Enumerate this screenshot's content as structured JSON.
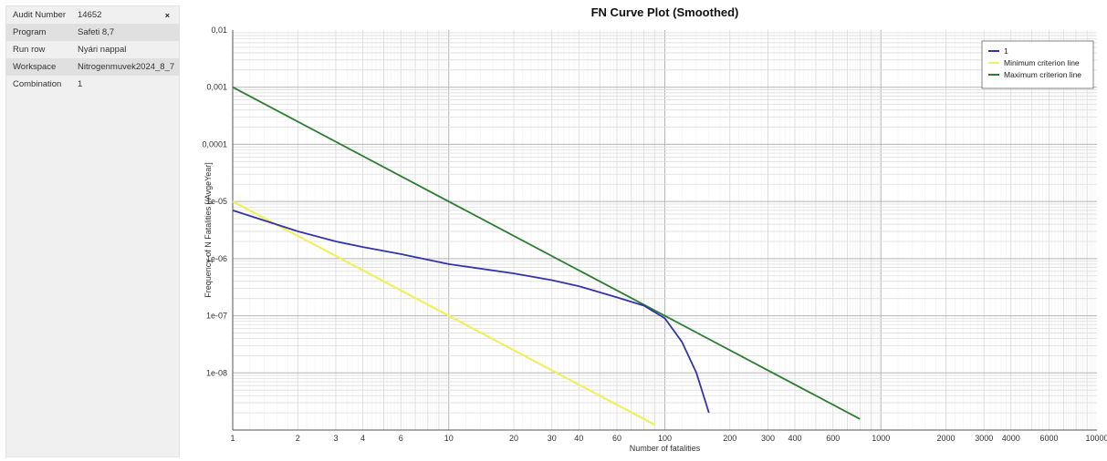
{
  "panel": {
    "close_label": "×",
    "rows": [
      {
        "label": "Audit Number",
        "value": "14652"
      },
      {
        "label": "Program",
        "value": "Safeti 8,7"
      },
      {
        "label": "Run row",
        "value": "Nyári nappal"
      },
      {
        "label": "Workspace",
        "value": "Nitrogenmuvek2024_8_7"
      },
      {
        "label": "Combination",
        "value": "1"
      }
    ]
  },
  "chart_data": {
    "type": "line",
    "title": "FN Curve Plot (Smoothed)",
    "xlabel": "Number of fatalities",
    "ylabel": "Frequency of N Fatalities [/AvgeYear]",
    "x_scale": "log",
    "y_scale": "log",
    "xlim": [
      1,
      10000
    ],
    "ylim": [
      1e-09,
      0.01
    ],
    "grid": true,
    "legend_position": "top-right",
    "x_tick_labels": [
      "1",
      "2",
      "3",
      "4",
      "6",
      "10",
      "20",
      "30",
      "40",
      "60",
      "100",
      "200",
      "300",
      "400",
      "600",
      "1000",
      "2000",
      "3000",
      "4000",
      "6000",
      "10000"
    ],
    "y_tick_labels": [
      "0,01",
      "0,001",
      "0,0001",
      "1e-05",
      "1e-06",
      "1e-07",
      "1e-08"
    ],
    "series": [
      {
        "name": "1",
        "color": "#3333aa",
        "x": [
          1,
          2,
          3,
          4,
          6,
          10,
          20,
          30,
          40,
          60,
          80,
          100,
          120,
          140,
          160
        ],
        "y": [
          7e-06,
          3e-06,
          2e-06,
          1.6e-06,
          1.2e-06,
          8e-07,
          5.5e-07,
          4.2e-07,
          3.3e-07,
          2.1e-07,
          1.5e-07,
          9e-08,
          3.5e-08,
          1e-08,
          2e-09
        ]
      },
      {
        "name": "Minimum criterion line",
        "color": "#f0f060",
        "x": [
          1,
          90
        ],
        "y": [
          1e-05,
          1.23e-09
        ]
      },
      {
        "name": "Maximum criterion line",
        "color": "#2e7d32",
        "x": [
          1,
          800
        ],
        "y": [
          0.001,
          1.56e-09
        ]
      }
    ]
  }
}
